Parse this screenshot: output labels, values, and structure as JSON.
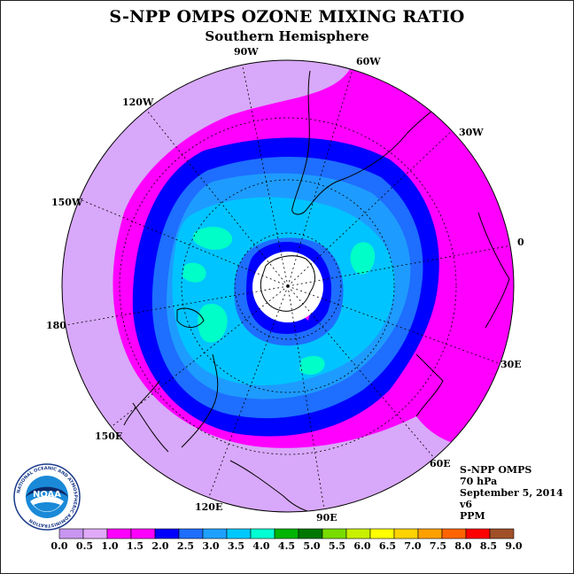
{
  "title": "S-NPP OMPS OZONE MIXING RATIO",
  "subtitle": "Southern Hemisphere",
  "longitude_labels": [
    "90W",
    "60W",
    "30W",
    "0",
    "30E",
    "60E",
    "90E",
    "120E",
    "150E",
    "180",
    "150W",
    "120W"
  ],
  "info": {
    "instrument": "S-NPP OMPS",
    "level": "70 hPa",
    "date": "September 5, 2014",
    "version": "v6",
    "units": "PPM"
  },
  "logo": {
    "text": "NOAA",
    "ring_text": "NATIONAL OCEANIC AND ATMOSPHERIC ADMINISTRATION",
    "ring_bottom": "U.S. DEPARTMENT OF COMMERCE"
  },
  "colorbar": {
    "ticks": [
      "0.0",
      "0.5",
      "1.0",
      "1.5",
      "2.0",
      "2.5",
      "3.0",
      "3.5",
      "4.0",
      "4.5",
      "5.0",
      "5.5",
      "6.0",
      "6.5",
      "7.0",
      "7.5",
      "8.0",
      "8.5",
      "9.0"
    ],
    "colors": [
      "#c896f0",
      "#e0aaf8",
      "#ff00ff",
      "#ff00ff",
      "#0000ff",
      "#1e6eff",
      "#1ea0ff",
      "#00c8ff",
      "#00ffd2",
      "#00b400",
      "#007800",
      "#78dc00",
      "#c8f000",
      "#ffff00",
      "#ffd200",
      "#ffa000",
      "#ff6400",
      "#ff0000",
      "#a05028"
    ]
  },
  "colors": {
    "lavender": "#d8a8fa",
    "magenta": "#ff00ff",
    "blue": "#0000ff",
    "mid_blue": "#1e6eff",
    "light_blue": "#1e9bff",
    "cyan": "#00c4ff",
    "aqua": "#00ffc8",
    "polar_cap": "#ffffff"
  }
}
